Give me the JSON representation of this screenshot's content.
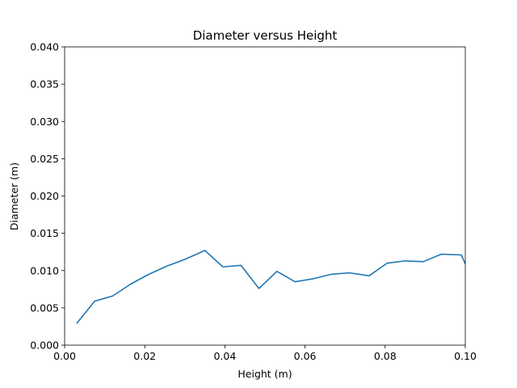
{
  "chart_data": {
    "type": "line",
    "title": "Diameter versus Height",
    "xlabel": "Height (m)",
    "ylabel": "Diameter (m)",
    "xlim": [
      0.0,
      0.1
    ],
    "ylim": [
      0.0,
      0.04
    ],
    "grid": false,
    "x_ticks": [
      "0.00",
      "0.02",
      "0.04",
      "0.06",
      "0.08",
      "0.10"
    ],
    "y_ticks": [
      "0.000",
      "0.005",
      "0.010",
      "0.015",
      "0.020",
      "0.025",
      "0.030",
      "0.035",
      "0.040"
    ],
    "series": [
      {
        "color": "#1f77b4",
        "x": [
          0.003,
          0.0075,
          0.012,
          0.0165,
          0.021,
          0.0255,
          0.03,
          0.035,
          0.0395,
          0.044,
          0.0485,
          0.053,
          0.0575,
          0.062,
          0.0665,
          0.071,
          0.076,
          0.0805,
          0.085,
          0.0895,
          0.094,
          0.099,
          0.1
        ],
        "y": [
          0.0029,
          0.0059,
          0.0066,
          0.0082,
          0.0095,
          0.0106,
          0.0115,
          0.0127,
          0.0105,
          0.0107,
          0.0076,
          0.0099,
          0.0085,
          0.0089,
          0.0095,
          0.0097,
          0.0093,
          0.011,
          0.0113,
          0.0112,
          0.0122,
          0.0121,
          0.0109
        ]
      }
    ]
  }
}
